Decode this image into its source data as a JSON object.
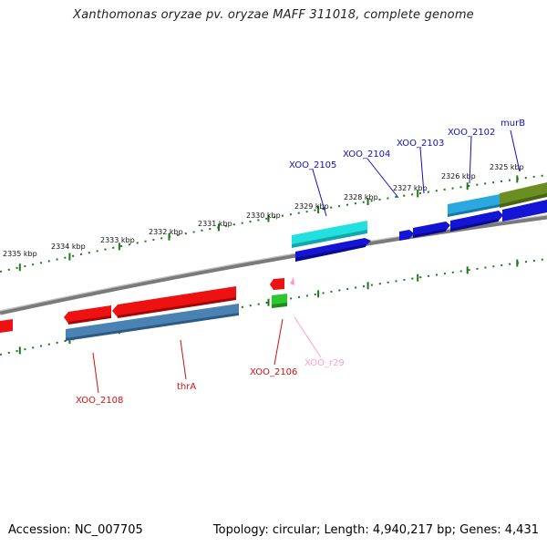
{
  "title": "Xanthomonas oryzae pv. oryzae MAFF 311018, complete genome",
  "footer": {
    "accession": "Accession: NC_007705",
    "topology": "Topology: circular; Length: 4,940,217 bp; Genes: 4,431"
  },
  "colors": {
    "backbone": "#808080",
    "ticks": "#1a7a1a",
    "red_gene": "#ee1111",
    "steelblue_gene": "#4a82b4",
    "blue_gene": "#1414d4",
    "cyan_gene": "#22e0e0",
    "skyblue_gene": "#2aa8e0",
    "olive_gene": "#6b8e23",
    "green_gene": "#2ec82e",
    "pink_gene": "#ff99cc",
    "blue_label": "#1010c8",
    "red_label": "#d01010",
    "pink_label": "#ff9fcf"
  },
  "ruler": {
    "unit": "kbp",
    "labels": [
      "2335 kbp",
      "2334 kbp",
      "2333 kbp",
      "2332 kbp",
      "2331 kbp",
      "2330 kbp",
      "2329 kbp",
      "2328 kbp",
      "2327 kbp",
      "2326 kbp",
      "2325 kbp"
    ]
  },
  "genes": [
    {
      "label": "murB",
      "color_key": "blue_label"
    },
    {
      "label": "XOO_2102",
      "color_key": "blue_label"
    },
    {
      "label": "XOO_2103",
      "color_key": "blue_label"
    },
    {
      "label": "XOO_2104",
      "color_key": "blue_label"
    },
    {
      "label": "XOO_2105",
      "color_key": "blue_label"
    },
    {
      "label": "XOO_2106",
      "color_key": "red_label"
    },
    {
      "label": "XOO_r29",
      "color_key": "pink_label"
    },
    {
      "label": "thrA",
      "color_key": "red_label"
    },
    {
      "label": "XOO_2108",
      "color_key": "red_label"
    }
  ]
}
